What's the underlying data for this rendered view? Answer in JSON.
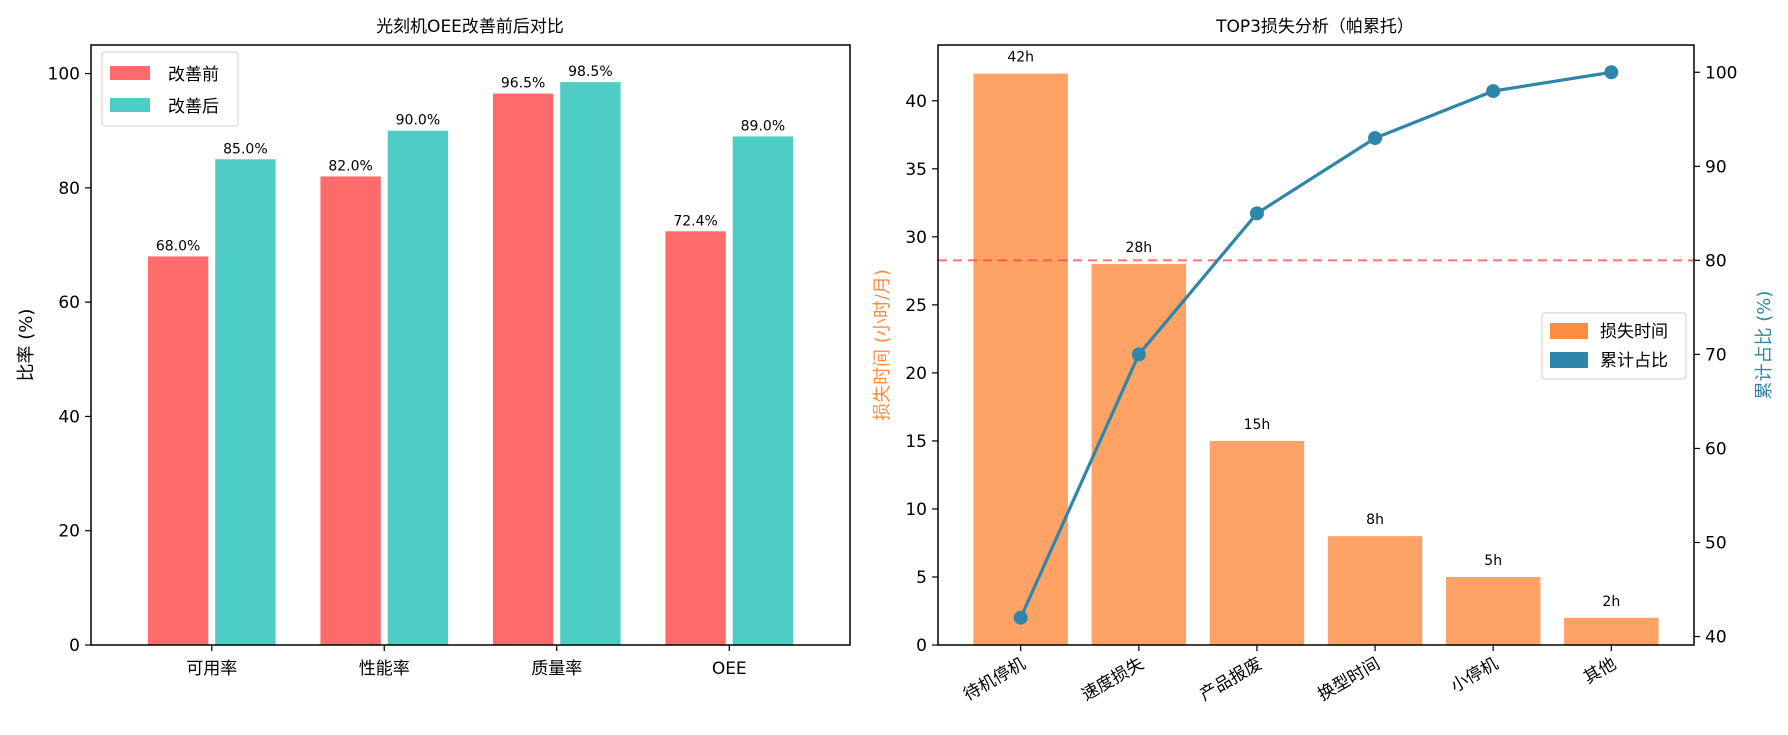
{
  "colors": {
    "before": "#ff6b6b",
    "after": "#4ecdc4",
    "loss_bar": "#ffa266",
    "loss_axis": "#ff8c42",
    "cumulative": "#2e86ab",
    "threshold": "#ff4444"
  },
  "chart_data": [
    {
      "type": "bar",
      "title": "光刻机OEE改善前后对比",
      "xlabel": "",
      "ylabel": "比率 (%)",
      "ylim": [
        0,
        105
      ],
      "yticks": [
        0,
        20,
        40,
        60,
        80,
        100
      ],
      "categories": [
        "可用率",
        "性能率",
        "质量率",
        "OEE"
      ],
      "series": [
        {
          "name": "改善前",
          "values": [
            68.0,
            82.0,
            96.5,
            72.4
          ],
          "labels": [
            "68.0%",
            "82.0%",
            "96.5%",
            "72.4%"
          ]
        },
        {
          "name": "改善后",
          "values": [
            85.0,
            90.0,
            98.5,
            89.0
          ],
          "labels": [
            "85.0%",
            "90.0%",
            "98.5%",
            "89.0%"
          ]
        }
      ],
      "legend_position": "top-left",
      "grid": false
    },
    {
      "type": "bar",
      "title": "TOP3损失分析（帕累托）",
      "categories": [
        "待机停机",
        "速度损失",
        "产品报废",
        "换型时间",
        "小停机",
        "其他"
      ],
      "ylabel": "损失时间 (小时/月)",
      "ylim": [
        0,
        44.1
      ],
      "yticks": [
        0,
        5,
        10,
        15,
        20,
        25,
        30,
        35,
        40
      ],
      "y2label": "累计占比 (%)",
      "y2lim": [
        39.1,
        102.9
      ],
      "y2ticks": [
        40,
        50,
        60,
        70,
        80,
        90,
        100
      ],
      "series": [
        {
          "name": "损失时间",
          "type": "bar",
          "axis": "left",
          "values": [
            42,
            28,
            15,
            8,
            5,
            2
          ],
          "labels": [
            "42h",
            "28h",
            "15h",
            "8h",
            "5h",
            "2h"
          ]
        },
        {
          "name": "累计占比",
          "type": "line",
          "axis": "right",
          "values": [
            42,
            70,
            85,
            93,
            98,
            100
          ]
        }
      ],
      "reference_line": {
        "axis": "right",
        "value": 80,
        "style": "dashed"
      },
      "legend_position": "center-right",
      "grid": false
    }
  ]
}
